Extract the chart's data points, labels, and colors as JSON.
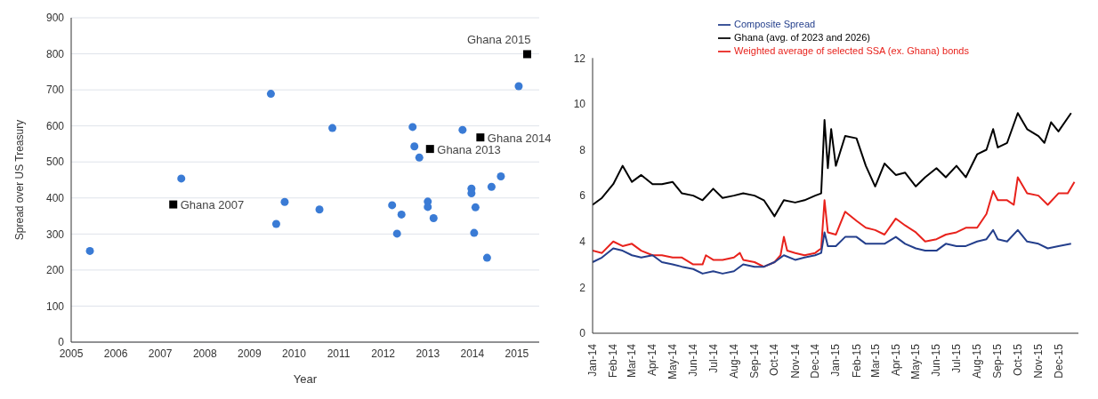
{
  "chart_data": [
    {
      "type": "scatter",
      "xlabel": "Year",
      "ylabel": "Spread over US Treasury",
      "xlim": [
        2005,
        2015.5
      ],
      "xticks": [
        2005,
        2006,
        2007,
        2008,
        2009,
        2010,
        2011,
        2012,
        2013,
        2014,
        2015
      ],
      "ylim": [
        0,
        900
      ],
      "yticks": [
        0,
        100,
        200,
        300,
        400,
        500,
        600,
        700,
        800,
        900
      ],
      "grid": "y",
      "series": [
        {
          "color": "#3a7bd5",
          "marker": "circle",
          "x": [
            2005.42,
            2007.47,
            2009.48,
            2009.6,
            2009.79,
            2010.57,
            2010.86,
            2012.2,
            2012.31,
            2012.41,
            2012.66,
            2012.7,
            2012.81,
            2013.0,
            2013.0,
            2013.13,
            2013.78,
            2013.98,
            2013.98,
            2014.04,
            2014.07,
            2014.33,
            2014.43,
            2014.64,
            2015.04
          ],
          "values": [
            253,
            454,
            689,
            328,
            389,
            368,
            594,
            380,
            301,
            354,
            597,
            543,
            512,
            390,
            375,
            344,
            589,
            426,
            413,
            303,
            374,
            234,
            431,
            460,
            710
          ]
        },
        {
          "color": "#000000",
          "marker": "square",
          "x": [
            2007.29,
            2013.05,
            2014.18,
            2015.23
          ],
          "values": [
            382,
            536,
            568,
            799
          ]
        }
      ],
      "annotations": [
        {
          "text": "Ghana 2007",
          "x": 2007.29,
          "y": 382
        },
        {
          "text": "Ghana 2013",
          "x": 2013.05,
          "y": 536
        },
        {
          "text": "Ghana 2014",
          "x": 2014.18,
          "y": 568
        },
        {
          "text": "Ghana 2015",
          "x": 2015.23,
          "y": 799
        }
      ]
    },
    {
      "type": "line",
      "legend": "top",
      "ylim": [
        0,
        12
      ],
      "yticks": [
        0,
        2,
        4,
        6,
        8,
        10,
        12
      ],
      "xlim": [
        "2014-01-01",
        "2015-12-31"
      ],
      "xticks": [
        {
          "value": "2014-01-01",
          "label": "Jan-14"
        },
        {
          "value": "2014-02-01",
          "label": "Feb-14"
        },
        {
          "value": "2014-03-01",
          "label": "Mar-14"
        },
        {
          "value": "2014-04-01",
          "label": "Apr-14"
        },
        {
          "value": "2014-05-01",
          "label": "May-14"
        },
        {
          "value": "2014-06-01",
          "label": "Jun-14"
        },
        {
          "value": "2014-07-01",
          "label": "Jul-14"
        },
        {
          "value": "2014-08-01",
          "label": "Aug-14"
        },
        {
          "value": "2014-09-01",
          "label": "Sep-14"
        },
        {
          "value": "2014-10-01",
          "label": "Oct-14"
        },
        {
          "value": "2014-11-01",
          "label": "Nov-14"
        },
        {
          "value": "2014-12-01",
          "label": "Dec-14"
        },
        {
          "value": "2015-01-01",
          "label": "Jan-15"
        },
        {
          "value": "2015-02-01",
          "label": "Feb-15"
        },
        {
          "value": "2015-03-01",
          "label": "Mar-15"
        },
        {
          "value": "2015-04-01",
          "label": "Apr-15"
        },
        {
          "value": "2015-05-01",
          "label": "May-15"
        },
        {
          "value": "2015-06-01",
          "label": "Jun-15"
        },
        {
          "value": "2015-07-01",
          "label": "Jul-15"
        },
        {
          "value": "2015-08-01",
          "label": "Aug-15"
        },
        {
          "value": "2015-09-01",
          "label": "Sep-15"
        },
        {
          "value": "2015-10-01",
          "label": "Oct-15"
        },
        {
          "value": "2015-11-01",
          "label": "Nov-15"
        },
        {
          "value": "2015-12-01",
          "label": "Dec-15"
        }
      ],
      "series": [
        {
          "name": "Ghana (avg. of 2023 and 2026)",
          "color": "#000000",
          "x": [
            "2014-01-01",
            "2014-01-15",
            "2014-02-01",
            "2014-02-15",
            "2014-03-01",
            "2014-03-15",
            "2014-04-01",
            "2014-04-15",
            "2014-05-01",
            "2014-05-15",
            "2014-06-01",
            "2014-06-15",
            "2014-07-01",
            "2014-07-15",
            "2014-08-01",
            "2014-08-15",
            "2014-09-01",
            "2014-09-15",
            "2014-10-01",
            "2014-10-15",
            "2014-11-01",
            "2014-11-15",
            "2014-12-01",
            "2014-12-10",
            "2014-12-15",
            "2014-12-20",
            "2014-12-25",
            "2015-01-01",
            "2015-01-15",
            "2015-02-01",
            "2015-02-15",
            "2015-03-01",
            "2015-03-15",
            "2015-04-01",
            "2015-04-15",
            "2015-05-01",
            "2015-05-15",
            "2015-06-01",
            "2015-06-15",
            "2015-07-01",
            "2015-07-15",
            "2015-08-01",
            "2015-08-15",
            "2015-08-25",
            "2015-09-01",
            "2015-09-15",
            "2015-10-01",
            "2015-10-15",
            "2015-11-01",
            "2015-11-10",
            "2015-11-20",
            "2015-12-01",
            "2015-12-20"
          ],
          "values": [
            5.6,
            5.9,
            6.5,
            7.3,
            6.6,
            6.9,
            6.5,
            6.5,
            6.6,
            6.1,
            6.0,
            5.8,
            6.3,
            5.9,
            6.0,
            6.1,
            6.0,
            5.8,
            5.1,
            5.8,
            5.7,
            5.8,
            6.0,
            6.1,
            9.3,
            7.2,
            8.9,
            7.3,
            8.6,
            8.5,
            7.3,
            6.4,
            7.4,
            6.9,
            7.0,
            6.4,
            6.8,
            7.2,
            6.8,
            7.3,
            6.8,
            7.8,
            8.0,
            8.9,
            8.1,
            8.3,
            9.6,
            8.9,
            8.6,
            8.3,
            9.2,
            8.8,
            9.6
          ]
        },
        {
          "name": "Weighted average of selected SSA (ex. Ghana) bonds",
          "color": "#e8221c",
          "x": [
            "2014-01-01",
            "2014-01-15",
            "2014-02-01",
            "2014-02-15",
            "2014-03-01",
            "2014-03-15",
            "2014-04-01",
            "2014-04-15",
            "2014-05-01",
            "2014-05-15",
            "2014-06-01",
            "2014-06-15",
            "2014-06-20",
            "2014-07-01",
            "2014-07-15",
            "2014-08-01",
            "2014-08-10",
            "2014-08-15",
            "2014-09-01",
            "2014-09-15",
            "2014-10-01",
            "2014-10-10",
            "2014-10-15",
            "2014-10-20",
            "2014-11-01",
            "2014-11-15",
            "2014-12-01",
            "2014-12-10",
            "2014-12-15",
            "2014-12-20",
            "2015-01-01",
            "2015-01-15",
            "2015-02-01",
            "2015-02-15",
            "2015-03-01",
            "2015-03-15",
            "2015-04-01",
            "2015-04-15",
            "2015-05-01",
            "2015-05-15",
            "2015-06-01",
            "2015-06-15",
            "2015-07-01",
            "2015-07-15",
            "2015-08-01",
            "2015-08-15",
            "2015-08-25",
            "2015-09-01",
            "2015-09-15",
            "2015-09-25",
            "2015-10-01",
            "2015-10-15",
            "2015-11-01",
            "2015-11-15",
            "2015-12-01",
            "2015-12-15",
            "2015-12-25"
          ],
          "values": [
            3.6,
            3.5,
            4.0,
            3.8,
            3.9,
            3.6,
            3.4,
            3.4,
            3.3,
            3.3,
            3.0,
            3.0,
            3.4,
            3.2,
            3.2,
            3.3,
            3.5,
            3.2,
            3.1,
            2.9,
            3.1,
            3.4,
            4.2,
            3.6,
            3.5,
            3.4,
            3.5,
            3.7,
            5.8,
            4.4,
            4.3,
            5.3,
            4.9,
            4.6,
            4.5,
            4.3,
            5.0,
            4.7,
            4.4,
            4.0,
            4.1,
            4.3,
            4.4,
            4.6,
            4.6,
            5.2,
            6.2,
            5.8,
            5.8,
            5.6,
            6.8,
            6.1,
            6.0,
            5.6,
            6.1,
            6.1,
            6.6
          ]
        },
        {
          "name": "Composite Spread",
          "color": "#243f8c",
          "x": [
            "2014-01-01",
            "2014-01-15",
            "2014-02-01",
            "2014-02-15",
            "2014-03-01",
            "2014-03-15",
            "2014-04-01",
            "2014-04-15",
            "2014-05-01",
            "2014-05-15",
            "2014-06-01",
            "2014-06-15",
            "2014-07-01",
            "2014-07-15",
            "2014-08-01",
            "2014-08-15",
            "2014-09-01",
            "2014-09-15",
            "2014-10-01",
            "2014-10-15",
            "2014-11-01",
            "2014-11-15",
            "2014-12-01",
            "2014-12-10",
            "2014-12-15",
            "2014-12-20",
            "2015-01-01",
            "2015-01-15",
            "2015-02-01",
            "2015-02-15",
            "2015-03-01",
            "2015-03-15",
            "2015-04-01",
            "2015-04-15",
            "2015-05-01",
            "2015-05-15",
            "2015-06-01",
            "2015-06-15",
            "2015-07-01",
            "2015-07-15",
            "2015-08-01",
            "2015-08-15",
            "2015-08-25",
            "2015-09-01",
            "2015-09-15",
            "2015-10-01",
            "2015-10-15",
            "2015-11-01",
            "2015-11-15",
            "2015-12-01",
            "2015-12-20"
          ],
          "values": [
            3.1,
            3.3,
            3.7,
            3.6,
            3.4,
            3.3,
            3.4,
            3.1,
            3.0,
            2.9,
            2.8,
            2.6,
            2.7,
            2.6,
            2.7,
            3.0,
            2.9,
            2.9,
            3.1,
            3.4,
            3.2,
            3.3,
            3.4,
            3.5,
            4.4,
            3.8,
            3.8,
            4.2,
            4.2,
            3.9,
            3.9,
            3.9,
            4.2,
            3.9,
            3.7,
            3.6,
            3.6,
            3.9,
            3.8,
            3.8,
            4.0,
            4.1,
            4.5,
            4.1,
            4.0,
            4.5,
            4.0,
            3.9,
            3.7,
            3.8,
            3.9
          ]
        }
      ]
    }
  ]
}
